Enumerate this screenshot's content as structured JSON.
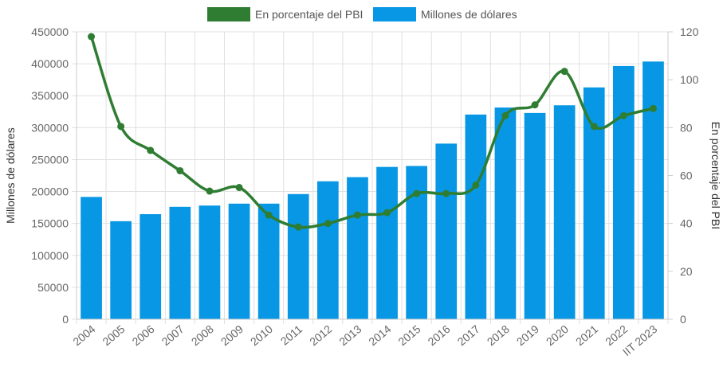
{
  "colors": {
    "bar": "#0897e4",
    "line": "#2e7d32",
    "grid": "#e0e0e0",
    "axis": "#cccccc",
    "tick_text": "#666666"
  },
  "chart_data": {
    "type": "bar",
    "grid": true,
    "legend_position": "top",
    "categories": [
      "2004",
      "2005",
      "2006",
      "2007",
      "2008",
      "2009",
      "2010",
      "2011",
      "2012",
      "2013",
      "2014",
      "2015",
      "2016",
      "2017",
      "2018",
      "2019",
      "2020",
      "2021",
      "2022",
      "IIT 2023"
    ],
    "y_left": {
      "label": "Millones de dólares",
      "min": 0,
      "max": 450000,
      "ticks": [
        "0",
        "50000",
        "100000",
        "150000",
        "200000",
        "250000",
        "300000",
        "350000",
        "400000",
        "450000"
      ]
    },
    "y_right": {
      "label": "En porcentaje del PBI",
      "min": 0,
      "max": 120,
      "ticks": [
        "0",
        "20",
        "40",
        "60",
        "80",
        "100",
        "120"
      ]
    },
    "series": [
      {
        "name": "Millones de dólares",
        "type": "bar",
        "axis": "left",
        "values": [
          191500,
          153500,
          164500,
          176000,
          178000,
          181000,
          181000,
          196000,
          216000,
          222500,
          238500,
          240000,
          275000,
          320500,
          331500,
          323000,
          335000,
          363000,
          396500,
          403500
        ]
      },
      {
        "name": "En porcentaje del PBI",
        "type": "line",
        "axis": "right",
        "values": [
          118,
          80.5,
          70.5,
          62,
          53.5,
          55,
          43.5,
          38.5,
          40,
          43.5,
          44.5,
          52.5,
          52.5,
          56,
          85,
          89.5,
          103.5,
          80.5,
          85,
          88
        ]
      }
    ]
  }
}
